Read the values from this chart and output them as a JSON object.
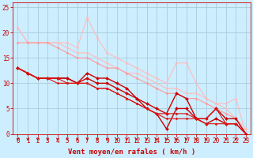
{
  "background_color": "#cceeff",
  "grid_color": "#aaccdd",
  "xlabel": "Vent moyen/en rafales ( km/h )",
  "xlabel_color": "#cc0000",
  "xlabel_fontsize": 6.5,
  "tick_color": "#cc0000",
  "tick_fontsize": 5.5,
  "ylim": [
    0,
    26
  ],
  "xlim": [
    -0.5,
    23.5
  ],
  "yticks": [
    0,
    5,
    10,
    15,
    20,
    25
  ],
  "xticks": [
    0,
    1,
    2,
    3,
    4,
    5,
    6,
    7,
    8,
    9,
    10,
    11,
    12,
    13,
    14,
    15,
    16,
    17,
    18,
    19,
    20,
    21,
    22,
    23
  ],
  "series": [
    {
      "y": [
        21,
        18,
        18,
        18,
        18,
        18,
        17,
        23,
        19,
        16,
        15,
        14,
        13,
        12,
        11,
        10,
        14,
        14,
        10,
        7,
        6,
        6,
        7,
        0
      ],
      "color": "#ffbbbb",
      "marker": "D",
      "markersize": 1.5,
      "linewidth": 0.8
    },
    {
      "y": [
        21,
        18,
        18,
        18,
        18,
        17,
        16,
        16,
        15,
        14,
        13,
        12,
        12,
        11,
        10,
        9,
        9,
        8,
        8,
        7,
        6,
        5,
        3,
        1
      ],
      "color": "#ffbbbb",
      "marker": "D",
      "markersize": 1.5,
      "linewidth": 0.8
    },
    {
      "y": [
        18,
        18,
        18,
        18,
        17,
        16,
        15,
        15,
        14,
        13,
        13,
        12,
        11,
        10,
        9,
        8,
        8,
        7,
        7,
        6,
        5,
        4,
        3,
        0
      ],
      "color": "#ff9999",
      "marker": "D",
      "markersize": 1.5,
      "linewidth": 0.8
    },
    {
      "y": [
        13,
        12,
        11,
        11,
        11,
        11,
        10,
        12,
        11,
        11,
        10,
        9,
        7,
        6,
        5,
        4,
        8,
        7,
        3,
        3,
        5,
        3,
        3,
        0
      ],
      "color": "#cc0000",
      "marker": "D",
      "markersize": 2.0,
      "linewidth": 1.0
    },
    {
      "y": [
        13,
        12,
        11,
        11,
        11,
        11,
        10,
        11,
        10,
        10,
        9,
        8,
        7,
        5,
        4,
        1,
        5,
        5,
        3,
        2,
        3,
        2,
        2,
        0
      ],
      "color": "#cc0000",
      "marker": "D",
      "markersize": 2.0,
      "linewidth": 1.0
    },
    {
      "y": [
        13,
        12,
        11,
        11,
        11,
        10,
        10,
        10,
        9,
        9,
        8,
        7,
        6,
        5,
        4,
        4,
        4,
        4,
        3,
        3,
        5,
        2,
        2,
        0
      ],
      "color": "#dd1111",
      "marker": "D",
      "markersize": 1.5,
      "linewidth": 0.8
    },
    {
      "y": [
        13,
        12,
        11,
        11,
        10,
        10,
        10,
        10,
        9,
        9,
        8,
        7,
        6,
        5,
        4,
        3,
        3,
        3,
        3,
        2,
        2,
        2,
        2,
        0
      ],
      "color": "#dd1111",
      "marker": "D",
      "markersize": 1.5,
      "linewidth": 0.8
    }
  ],
  "arrow_color": "#cc0000"
}
